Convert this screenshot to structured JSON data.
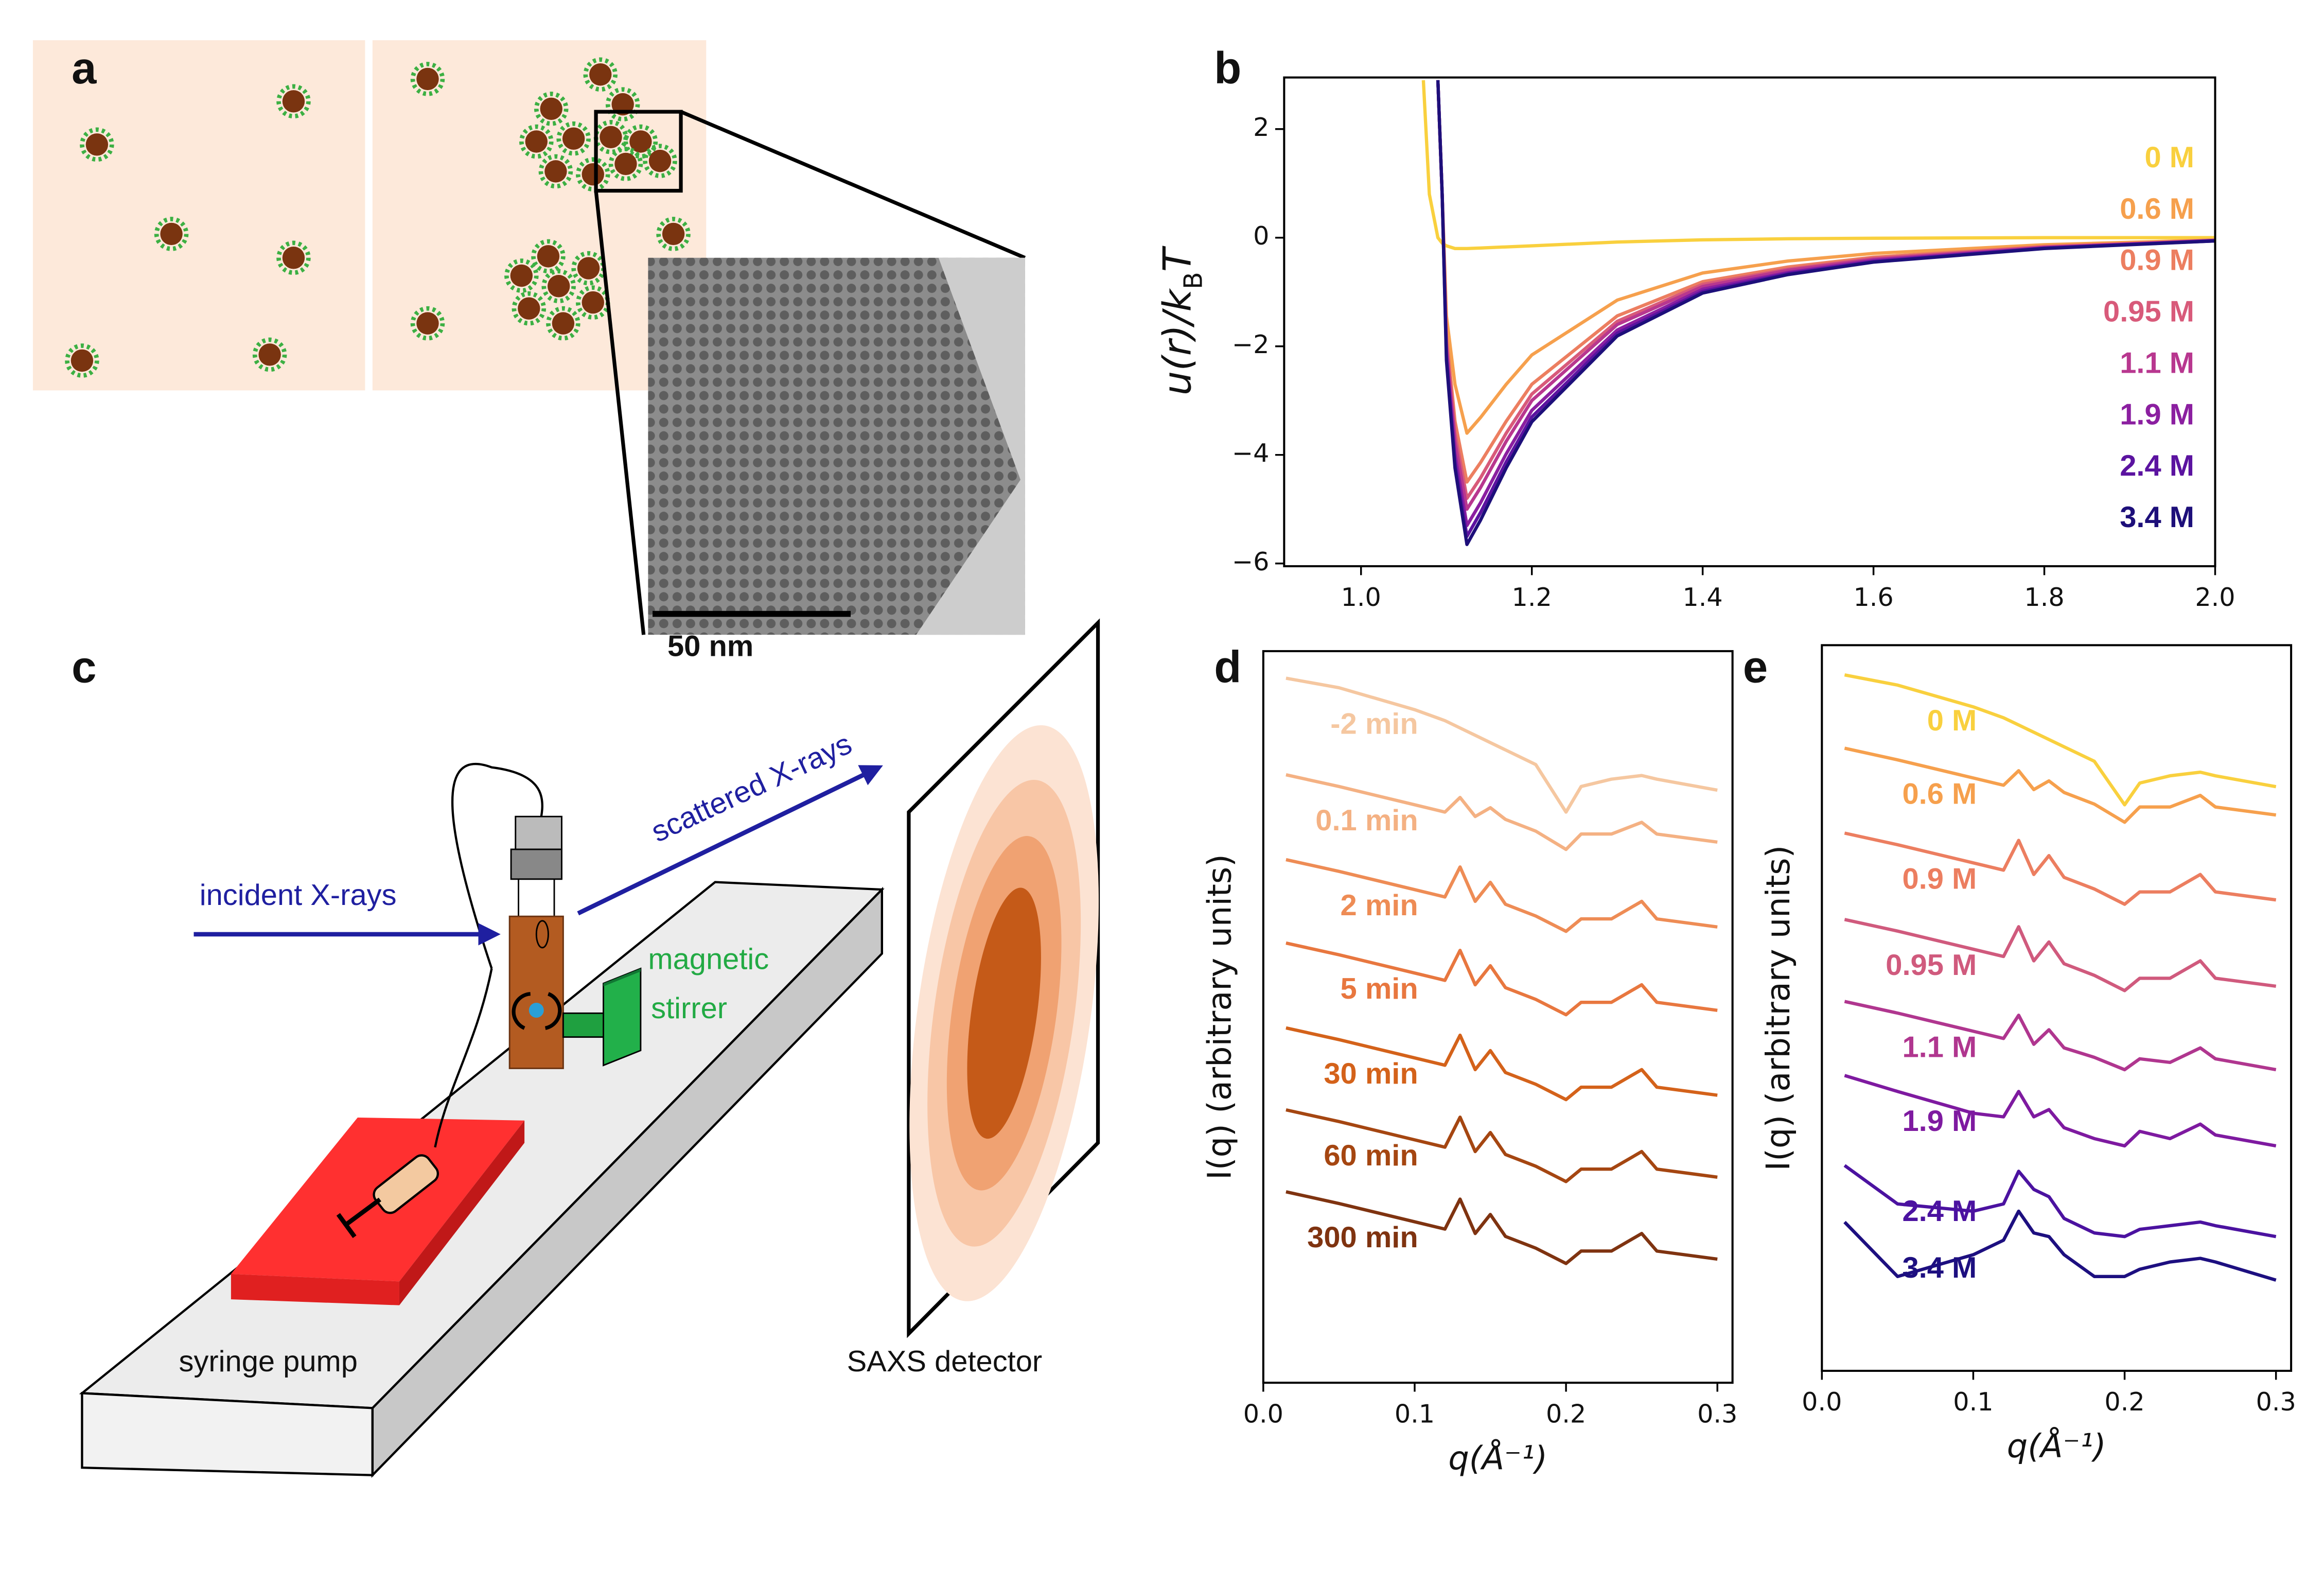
{
  "panel_labels": [
    "a",
    "b",
    "c",
    "d",
    "e"
  ],
  "panel_a": {
    "scale_bar": "50 nm"
  },
  "panel_c": {
    "incident": "incident X-rays",
    "scattered": "scattered X-rays",
    "stirrer": [
      "magnetic",
      "stirrer"
    ],
    "pump": "syringe pump",
    "detector": "SAXS detector"
  },
  "chart_data": [
    {
      "type": "line",
      "ylabel": [
        "u(r)/k",
        "B",
        "T"
      ],
      "legend": "right",
      "x": [
        1.073,
        1.08,
        1.09,
        1.095,
        1.1,
        1.11,
        1.124,
        1.14,
        1.17,
        1.2,
        1.3,
        1.4,
        1.5,
        1.6,
        1.8,
        2.0
      ],
      "xlim": [
        0.91,
        2.0
      ],
      "xticks": [
        {
          "value": 1,
          "label": "1.0"
        },
        1.2,
        1.4,
        1.6,
        1.8,
        {
          "value": 2,
          "label": "2.0"
        }
      ],
      "ylim": [
        -6.05,
        2.95
      ],
      "yticks": [
        {
          "value": -6,
          "label": "−6"
        },
        {
          "value": -4,
          "label": "−4"
        },
        {
          "value": -2,
          "label": "−2"
        },
        0,
        2
      ],
      "series": [
        {
          "name": "0 M",
          "color": "#f9d03e",
          "values": [
            2.9,
            0.8,
            0,
            -0.1,
            -0.15,
            -0.2,
            -0.2,
            -0.19,
            -0.17,
            -0.15,
            -0.08,
            -0.04,
            -0.02,
            -0.01,
            0,
            0
          ]
        },
        {
          "name": "0.6 M",
          "color": "#f6a04d",
          "values": [
            null,
            null,
            2.9,
            0.8,
            -1.44,
            -2.7,
            -3.6,
            -3.31,
            -2.7,
            -2.16,
            -1.15,
            -0.65,
            -0.43,
            -0.29,
            -0.13,
            -0.04
          ]
        },
        {
          "name": "0.9 M",
          "color": "#ec7e60",
          "values": [
            null,
            null,
            2.9,
            0.8,
            -1.8,
            -3.38,
            -4.5,
            -4.14,
            -3.38,
            -2.7,
            -1.44,
            -0.81,
            -0.54,
            -0.36,
            -0.16,
            -0.05
          ]
        },
        {
          "name": "0.95 M",
          "color": "#d85a7a",
          "values": [
            null,
            null,
            2.9,
            0.8,
            -1.92,
            -3.6,
            -4.8,
            -4.42,
            -3.6,
            -2.88,
            -1.54,
            -0.86,
            -0.58,
            -0.38,
            -0.17,
            -0.05
          ]
        },
        {
          "name": "1.1 M",
          "color": "#b8378f",
          "values": [
            null,
            null,
            2.9,
            0.8,
            -2.0,
            -3.75,
            -5.0,
            -4.6,
            -3.75,
            -3.0,
            -1.6,
            -0.9,
            -0.6,
            -0.4,
            -0.18,
            -0.05
          ]
        },
        {
          "name": "1.9 M",
          "color": "#8b1fa0",
          "values": [
            null,
            null,
            2.9,
            0.8,
            -2.12,
            -3.98,
            -5.3,
            -4.88,
            -3.98,
            -3.18,
            -1.7,
            -0.95,
            -0.64,
            -0.42,
            -0.19,
            -0.05
          ]
        },
        {
          "name": "2.4 M",
          "color": "#5b13a0",
          "values": [
            null,
            null,
            2.9,
            0.8,
            -2.2,
            -4.13,
            -5.5,
            -5.06,
            -4.13,
            -3.3,
            -1.76,
            -0.99,
            -0.66,
            -0.44,
            -0.19,
            -0.06
          ]
        },
        {
          "name": "3.4 M",
          "color": "#1d0f7a",
          "values": [
            null,
            null,
            2.9,
            0.8,
            -2.26,
            -4.24,
            -5.65,
            -5.2,
            -4.24,
            -3.39,
            -1.81,
            -1.02,
            -0.68,
            -0.45,
            -0.2,
            -0.06
          ]
        }
      ]
    },
    {
      "type": "line",
      "xlabel": "q(Å⁻¹)",
      "ylabel": "I(q) (arbitrary units)",
      "legend": "inline",
      "x": [
        0.015,
        0.05,
        0.1,
        0.12,
        0.13,
        0.14,
        0.15,
        0.16,
        0.18,
        0.2,
        0.21,
        0.23,
        0.25,
        0.26,
        0.3
      ],
      "xlim": [
        0,
        0.31
      ],
      "xticks": [
        {
          "value": 0,
          "label": "0.0"
        },
        0.1,
        0.2,
        0.3
      ],
      "ylim": [
        0,
        10
      ],
      "series": [
        {
          "name": "-2 min",
          "color": "#f5c7a0",
          "values": [
            9.63,
            9.5,
            9.2,
            9.05,
            8.95,
            8.85,
            8.75,
            8.65,
            8.45,
            7.8,
            8.15,
            8.25,
            8.3,
            8.25,
            8.1
          ]
        },
        {
          "name": "0.1 min",
          "color": "#f4b183",
          "values": [
            8.31,
            8.15,
            7.9,
            7.8,
            8.0,
            7.74,
            7.86,
            7.7,
            7.54,
            7.29,
            7.5,
            7.5,
            7.66,
            7.5,
            7.39
          ]
        },
        {
          "name": "2 min",
          "color": "#ee8c55",
          "values": [
            7.15,
            6.99,
            6.74,
            6.64,
            7.05,
            6.58,
            6.84,
            6.54,
            6.38,
            6.17,
            6.34,
            6.34,
            6.58,
            6.34,
            6.23
          ]
        },
        {
          "name": "5 min",
          "color": "#e8773f",
          "values": [
            6.01,
            5.85,
            5.6,
            5.5,
            5.91,
            5.44,
            5.7,
            5.4,
            5.24,
            5.03,
            5.2,
            5.2,
            5.44,
            5.2,
            5.09
          ]
        },
        {
          "name": "30 min",
          "color": "#d4621a",
          "values": [
            4.85,
            4.69,
            4.44,
            4.34,
            4.75,
            4.28,
            4.54,
            4.24,
            4.08,
            3.87,
            4.04,
            4.04,
            4.28,
            4.04,
            3.93
          ]
        },
        {
          "name": "60 min",
          "color": "#a54611",
          "values": [
            3.73,
            3.57,
            3.32,
            3.22,
            3.63,
            3.16,
            3.42,
            3.12,
            2.96,
            2.75,
            2.92,
            2.92,
            3.16,
            2.92,
            2.81
          ]
        },
        {
          "name": "300 min",
          "color": "#7f3310",
          "values": [
            2.61,
            2.45,
            2.2,
            2.1,
            2.51,
            2.04,
            2.3,
            2.0,
            1.84,
            1.63,
            1.8,
            1.8,
            2.04,
            1.8,
            1.69
          ]
        }
      ]
    },
    {
      "type": "line",
      "xlabel": "q(Å⁻¹)",
      "ylabel": "I(q) (arbitrary units)",
      "legend": "inline",
      "x": [
        0.015,
        0.05,
        0.1,
        0.12,
        0.13,
        0.14,
        0.15,
        0.16,
        0.18,
        0.2,
        0.21,
        0.23,
        0.25,
        0.26,
        0.3
      ],
      "xlim": [
        0,
        0.31
      ],
      "xticks": [
        {
          "value": 0,
          "label": "0.0"
        },
        0.1,
        0.2,
        0.3
      ],
      "ylim": [
        0,
        10
      ],
      "series": [
        {
          "name": "0 M",
          "color": "#f9d03e",
          "values": [
            9.59,
            9.45,
            9.15,
            9.0,
            8.9,
            8.8,
            8.7,
            8.6,
            8.4,
            7.8,
            8.1,
            8.2,
            8.25,
            8.2,
            8.05
          ]
        },
        {
          "name": "0.6 M",
          "color": "#f6a04d",
          "values": [
            8.58,
            8.42,
            8.17,
            8.07,
            8.27,
            8.01,
            8.13,
            7.97,
            7.81,
            7.56,
            7.77,
            7.77,
            7.93,
            7.77,
            7.66
          ]
        },
        {
          "name": "0.9 M",
          "color": "#ec7e60",
          "values": [
            7.41,
            7.25,
            7.0,
            6.9,
            7.31,
            6.84,
            7.1,
            6.8,
            6.64,
            6.43,
            6.6,
            6.6,
            6.84,
            6.6,
            6.49
          ]
        },
        {
          "name": "0.95 M",
          "color": "#d05a7d",
          "values": [
            6.22,
            6.06,
            5.81,
            5.71,
            6.12,
            5.65,
            5.91,
            5.61,
            5.45,
            5.24,
            5.41,
            5.41,
            5.65,
            5.41,
            5.3
          ]
        },
        {
          "name": "1.1 M",
          "color": "#b0368f",
          "values": [
            5.09,
            4.93,
            4.68,
            4.58,
            4.9,
            4.5,
            4.7,
            4.45,
            4.32,
            4.15,
            4.3,
            4.25,
            4.45,
            4.3,
            4.15
          ]
        },
        {
          "name": "1.9 M",
          "color": "#7e1aa0",
          "values": [
            4.07,
            3.85,
            3.55,
            3.5,
            3.85,
            3.5,
            3.6,
            3.35,
            3.2,
            3.1,
            3.3,
            3.2,
            3.4,
            3.25,
            3.1
          ]
        },
        {
          "name": "2.4 M",
          "color": "#4b12a0",
          "values": [
            2.83,
            2.3,
            2.2,
            2.3,
            2.75,
            2.5,
            2.4,
            2.1,
            1.9,
            1.85,
            1.95,
            2.0,
            2.05,
            2.0,
            1.85
          ]
        },
        {
          "name": "3.4 M",
          "color": "#1d0f80",
          "values": [
            2.05,
            1.3,
            1.6,
            1.8,
            2.2,
            1.9,
            1.85,
            1.6,
            1.3,
            1.3,
            1.4,
            1.5,
            1.55,
            1.5,
            1.25
          ]
        }
      ]
    }
  ]
}
